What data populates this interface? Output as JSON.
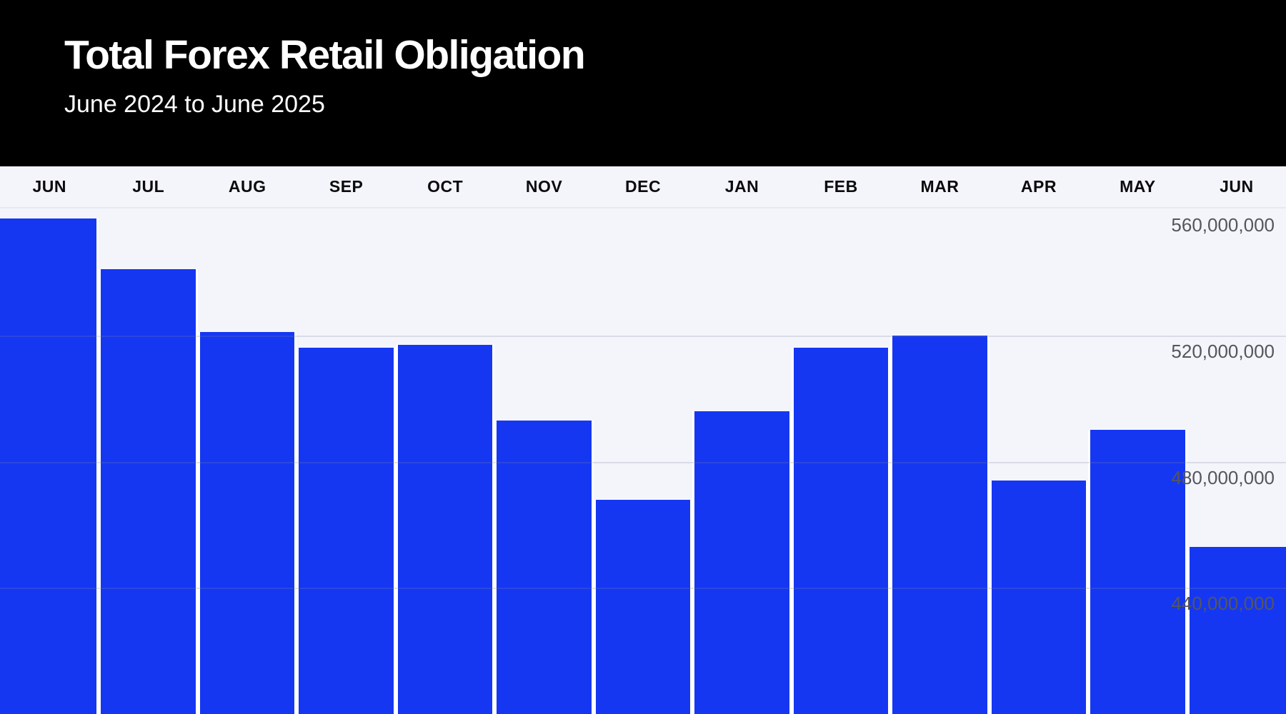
{
  "header": {
    "title": "Total Forex Retail Obligation",
    "subtitle": "June 2024 to June 2025"
  },
  "chart_data": {
    "type": "bar",
    "title": "Total Forex Retail Obligation",
    "subtitle": "June 2024 to June 2025",
    "categories": [
      "JUN",
      "JUL",
      "AUG",
      "SEP",
      "OCT",
      "NOV",
      "DEC",
      "JAN",
      "FEB",
      "MAR",
      "APR",
      "MAY",
      "JUN"
    ],
    "values": [
      557000000,
      541000000,
      521000000,
      516000000,
      517000000,
      493000000,
      468000000,
      496000000,
      516000000,
      520000000,
      474000000,
      490000000,
      453000000
    ],
    "xlabel": "",
    "ylabel": "",
    "ylim": [
      400000000,
      560000000
    ],
    "yticks": [
      {
        "value": 560000000,
        "label": "560,000,000"
      },
      {
        "value": 520000000,
        "label": "520,000,000"
      },
      {
        "value": 480000000,
        "label": "480,000,000"
      },
      {
        "value": 440000000,
        "label": "440,000,000"
      }
    ],
    "grid": "horizontal",
    "legend": false,
    "tick_label_position": "right, below gridline",
    "bars_extend_to_bottom_edge": true
  },
  "colors": {
    "header_bg": "#000000",
    "header_text": "#ffffff",
    "plot_bg": "#f4f5fb",
    "bar": "#1537f2",
    "bar_gap": "#ffffff",
    "grid_solid": "#e7e9f1",
    "grid_overlay": "rgba(125,131,160,0.22)",
    "tick_label": "#55565c",
    "month_label": "#0b0b0e"
  }
}
